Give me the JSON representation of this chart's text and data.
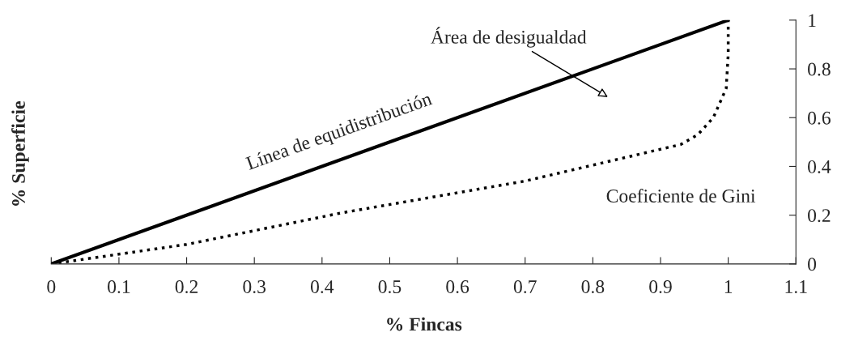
{
  "chart_data": {
    "type": "line",
    "xlabel": "% Fincas",
    "ylabel": "% Superficie",
    "series": [
      {
        "color": "#000000",
        "line_style": "solid",
        "x": [
          0,
          1
        ],
        "values": [
          0,
          1
        ]
      },
      {
        "color": "#000000",
        "line_style": "dotted",
        "x": [
          0,
          0.2,
          0.43,
          0.7,
          0.93,
          0.955,
          0.978,
          0.997,
          1.0,
          1.0
        ],
        "values": [
          0,
          0.08,
          0.21,
          0.34,
          0.49,
          0.53,
          0.6,
          0.72,
          0.86,
          1.0
        ]
      }
    ],
    "annotations": [
      "Área de desigualdad",
      {
        "text": "Línea de equidistribución",
        "x": 0.45,
        "y": 0.45
      },
      {
        "text": "Coeficiente de Gini",
        "x": 0.93,
        "y": 0.49
      }
    ],
    "xlim": [
      0,
      1.1
    ],
    "ylim": [
      0,
      1
    ],
    "xticks": [
      0,
      0.1,
      0.2,
      0.3,
      0.4,
      0.5,
      0.6,
      0.7,
      0.8,
      0.9,
      1,
      1.1
    ],
    "yticks": [
      0,
      0.2,
      0.4,
      0.6,
      0.8,
      1
    ],
    "grid": false,
    "legend": false
  }
}
